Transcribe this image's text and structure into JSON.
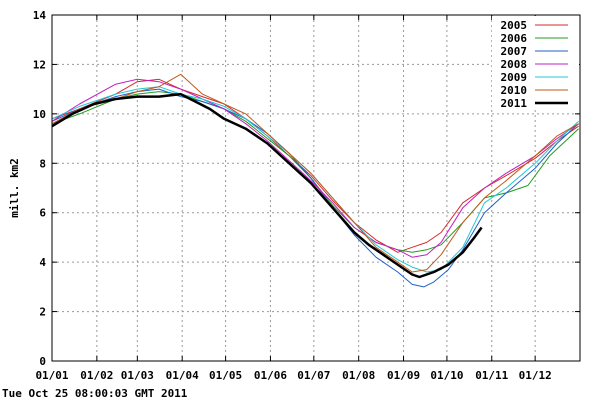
{
  "chart_data": {
    "type": "line",
    "title": "",
    "xlabel": "",
    "ylabel": "mill. km2",
    "x_tick_labels": [
      "01/01",
      "01/02",
      "01/03",
      "01/04",
      "01/05",
      "01/06",
      "01/07",
      "01/08",
      "01/09",
      "01/10",
      "01/11",
      "01/12"
    ],
    "y_ticks": [
      0,
      2,
      4,
      6,
      8,
      10,
      12,
      14
    ],
    "ylim": [
      0,
      14
    ],
    "grid": true,
    "legend_position": "top-right",
    "series": [
      {
        "name": "2005",
        "color": "#d42b2b",
        "points": [
          [
            1,
            9.8
          ],
          [
            20,
            10.2
          ],
          [
            45,
            10.8
          ],
          [
            60,
            11.3
          ],
          [
            75,
            11.4
          ],
          [
            90,
            11.0
          ],
          [
            105,
            10.7
          ],
          [
            120,
            10.4
          ],
          [
            135,
            9.8
          ],
          [
            150,
            9.1
          ],
          [
            165,
            8.3
          ],
          [
            180,
            7.5
          ],
          [
            195,
            6.5
          ],
          [
            210,
            5.6
          ],
          [
            225,
            4.9
          ],
          [
            240,
            4.4
          ],
          [
            250,
            4.6
          ],
          [
            260,
            4.8
          ],
          [
            270,
            5.2
          ],
          [
            285,
            6.4
          ],
          [
            300,
            7.0
          ],
          [
            315,
            7.5
          ],
          [
            335,
            8.2
          ],
          [
            350,
            8.9
          ],
          [
            365,
            9.5
          ]
        ]
      },
      {
        "name": "2006",
        "color": "#1f9e1f",
        "points": [
          [
            1,
            9.6
          ],
          [
            20,
            10.0
          ],
          [
            45,
            10.6
          ],
          [
            60,
            10.8
          ],
          [
            75,
            10.9
          ],
          [
            90,
            10.8
          ],
          [
            105,
            10.5
          ],
          [
            120,
            10.2
          ],
          [
            135,
            9.7
          ],
          [
            150,
            9.0
          ],
          [
            165,
            8.3
          ],
          [
            180,
            7.4
          ],
          [
            195,
            6.3
          ],
          [
            210,
            5.4
          ],
          [
            225,
            4.8
          ],
          [
            240,
            4.5
          ],
          [
            250,
            4.4
          ],
          [
            260,
            4.5
          ],
          [
            270,
            4.7
          ],
          [
            285,
            5.6
          ],
          [
            300,
            6.6
          ],
          [
            315,
            6.8
          ],
          [
            330,
            7.1
          ],
          [
            345,
            8.3
          ],
          [
            365,
            9.4
          ]
        ]
      },
      {
        "name": "2007",
        "color": "#2060c8",
        "points": [
          [
            1,
            9.7
          ],
          [
            20,
            10.2
          ],
          [
            45,
            10.7
          ],
          [
            60,
            10.9
          ],
          [
            75,
            11.0
          ],
          [
            90,
            10.7
          ],
          [
            105,
            10.5
          ],
          [
            120,
            10.2
          ],
          [
            135,
            9.8
          ],
          [
            150,
            9.2
          ],
          [
            165,
            8.4
          ],
          [
            180,
            7.4
          ],
          [
            195,
            6.2
          ],
          [
            210,
            5.1
          ],
          [
            225,
            4.2
          ],
          [
            240,
            3.6
          ],
          [
            250,
            3.1
          ],
          [
            258,
            3.0
          ],
          [
            265,
            3.2
          ],
          [
            275,
            3.7
          ],
          [
            285,
            4.5
          ],
          [
            300,
            6.0
          ],
          [
            315,
            6.8
          ],
          [
            335,
            7.8
          ],
          [
            350,
            8.8
          ],
          [
            365,
            9.6
          ]
        ]
      },
      {
        "name": "2008",
        "color": "#c020c0",
        "points": [
          [
            1,
            9.7
          ],
          [
            20,
            10.4
          ],
          [
            45,
            11.2
          ],
          [
            60,
            11.4
          ],
          [
            75,
            11.3
          ],
          [
            90,
            11.0
          ],
          [
            105,
            10.6
          ],
          [
            120,
            10.2
          ],
          [
            135,
            9.6
          ],
          [
            150,
            8.9
          ],
          [
            165,
            8.1
          ],
          [
            180,
            7.3
          ],
          [
            195,
            6.4
          ],
          [
            210,
            5.4
          ],
          [
            225,
            4.8
          ],
          [
            240,
            4.5
          ],
          [
            250,
            4.2
          ],
          [
            260,
            4.3
          ],
          [
            270,
            4.8
          ],
          [
            285,
            6.2
          ],
          [
            300,
            7.0
          ],
          [
            315,
            7.6
          ],
          [
            335,
            8.3
          ],
          [
            350,
            9.0
          ],
          [
            365,
            9.6
          ]
        ]
      },
      {
        "name": "2009",
        "color": "#20c8d8",
        "points": [
          [
            1,
            9.8
          ],
          [
            20,
            10.3
          ],
          [
            45,
            10.8
          ],
          [
            60,
            11.0
          ],
          [
            75,
            11.1
          ],
          [
            90,
            10.8
          ],
          [
            105,
            10.6
          ],
          [
            120,
            10.3
          ],
          [
            135,
            9.8
          ],
          [
            150,
            9.1
          ],
          [
            165,
            8.4
          ],
          [
            180,
            7.6
          ],
          [
            195,
            6.6
          ],
          [
            210,
            5.6
          ],
          [
            225,
            4.7
          ],
          [
            240,
            4.1
          ],
          [
            250,
            3.8
          ],
          [
            260,
            3.6
          ],
          [
            270,
            3.7
          ],
          [
            285,
            4.6
          ],
          [
            300,
            6.4
          ],
          [
            315,
            7.0
          ],
          [
            335,
            8.0
          ],
          [
            350,
            8.9
          ],
          [
            365,
            9.7
          ]
        ]
      },
      {
        "name": "2010",
        "color": "#c05a1a",
        "points": [
          [
            1,
            9.6
          ],
          [
            20,
            10.2
          ],
          [
            45,
            10.6
          ],
          [
            60,
            10.9
          ],
          [
            75,
            11.1
          ],
          [
            90,
            11.6
          ],
          [
            105,
            10.8
          ],
          [
            120,
            10.4
          ],
          [
            135,
            10.0
          ],
          [
            150,
            9.2
          ],
          [
            165,
            8.4
          ],
          [
            180,
            7.6
          ],
          [
            195,
            6.6
          ],
          [
            210,
            5.6
          ],
          [
            225,
            4.6
          ],
          [
            240,
            4.0
          ],
          [
            250,
            3.6
          ],
          [
            260,
            3.7
          ],
          [
            270,
            4.3
          ],
          [
            285,
            5.6
          ],
          [
            300,
            6.6
          ],
          [
            315,
            7.3
          ],
          [
            335,
            8.3
          ],
          [
            350,
            9.1
          ],
          [
            365,
            9.6
          ]
        ]
      },
      {
        "name": "2011",
        "color": "#000000",
        "points": [
          [
            1,
            9.5
          ],
          [
            15,
            10.0
          ],
          [
            30,
            10.4
          ],
          [
            45,
            10.6
          ],
          [
            60,
            10.7
          ],
          [
            75,
            10.7
          ],
          [
            90,
            10.8
          ],
          [
            100,
            10.5
          ],
          [
            110,
            10.2
          ],
          [
            120,
            9.8
          ],
          [
            135,
            9.4
          ],
          [
            150,
            8.8
          ],
          [
            165,
            8.0
          ],
          [
            180,
            7.2
          ],
          [
            195,
            6.2
          ],
          [
            210,
            5.2
          ],
          [
            220,
            4.7
          ],
          [
            230,
            4.3
          ],
          [
            240,
            3.9
          ],
          [
            250,
            3.5
          ],
          [
            255,
            3.4
          ],
          [
            265,
            3.6
          ],
          [
            275,
            3.9
          ],
          [
            285,
            4.4
          ],
          [
            293,
            5.0
          ],
          [
            298,
            5.4
          ]
        ]
      }
    ]
  },
  "footer": {
    "timestamp": "Tue Oct 25 08:00:03 GMT 2011"
  }
}
